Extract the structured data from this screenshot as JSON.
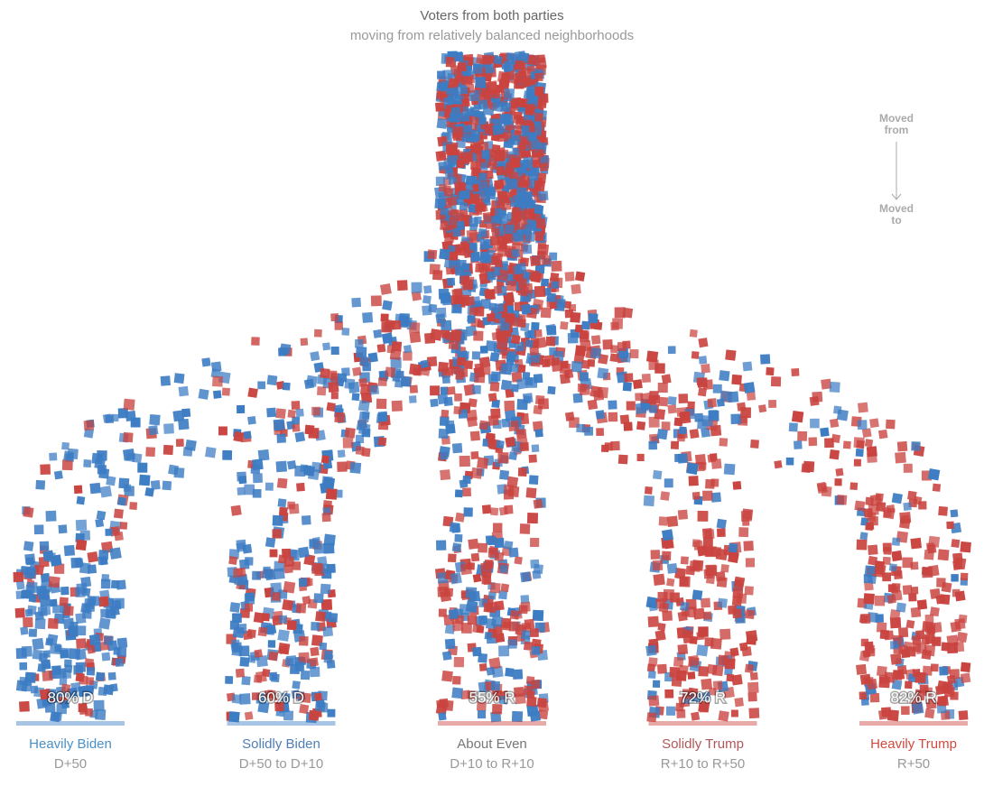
{
  "chart_data": {
    "type": "flow",
    "title": "Voters from both parties",
    "subtitle": "moving from relatively balanced neighborhoods",
    "annotation_top": [
      "Moved",
      "from"
    ],
    "annotation_bottom": [
      "Moved",
      "to"
    ],
    "categories": [
      "Heavily Biden",
      "Solidly Biden",
      "About Even",
      "Solidly Trump",
      "Heavily Trump"
    ],
    "sublabels": [
      "D+50",
      "D+50 to D+10",
      "D+10 to R+10",
      "R+10 to R+50",
      "R+50"
    ],
    "values": [
      80,
      60,
      55,
      72,
      82
    ],
    "value_labels": [
      "80% D",
      "60% D",
      "55% R",
      "72% R",
      "82% R"
    ],
    "majority_colors": [
      "#3c7cc3",
      "#3c7cc3",
      "#c9433f",
      "#c9433f",
      "#c9433f"
    ],
    "minority_colors": [
      "#c9433f",
      "#c9433f",
      "#3c7cc3",
      "#3c7cc3",
      "#3c7cc3"
    ],
    "label_colors": [
      "#4a90c8",
      "#4f7fb4",
      "#777777",
      "#b0575a",
      "#d24a3f"
    ]
  }
}
